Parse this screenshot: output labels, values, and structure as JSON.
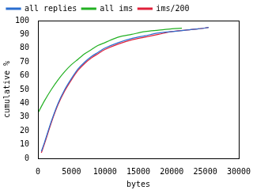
{
  "chart_data": {
    "type": "line",
    "x_label": "bytes",
    "y_label": "cumulative %",
    "xlim": [
      0,
      30000
    ],
    "xticks": [
      0,
      5000,
      10000,
      15000,
      20000,
      25000,
      30000
    ],
    "ylim": [
      0,
      100
    ],
    "yticks": [
      0,
      10,
      20,
      30,
      40,
      50,
      60,
      70,
      80,
      90,
      100
    ],
    "grid": false,
    "legend": "top",
    "series": [
      {
        "name": "all replies",
        "color": "#2a6fd0",
        "x": [
          500,
          1000,
          2000,
          3000,
          4000,
          5000,
          6000,
          7000,
          8000,
          9000,
          10000,
          12000,
          14000,
          16000,
          18000,
          20000,
          22000,
          24000,
          25500
        ],
        "values": [
          5,
          12,
          27,
          40,
          50,
          58,
          65,
          70,
          74,
          77,
          80,
          84,
          87,
          89,
          91,
          92,
          93,
          94,
          95
        ]
      },
      {
        "name": "all ims",
        "color": "#22b022",
        "x": [
          0,
          1000,
          2000,
          3000,
          4000,
          5000,
          6000,
          7000,
          8000,
          9000,
          10000,
          12000,
          14000,
          16000,
          18000,
          20000,
          21500
        ],
        "values": [
          33,
          42,
          50,
          57,
          63,
          68,
          72,
          76,
          79,
          82,
          84,
          88,
          90,
          92,
          93,
          94,
          94.5
        ]
      },
      {
        "name": "ims/200",
        "color": "#e0203a",
        "x": [
          500,
          1000,
          2000,
          3000,
          4000,
          5000,
          6000,
          7000,
          8000,
          9000,
          10000,
          12000,
          14000,
          16000,
          18000,
          20000,
          22000,
          24000,
          25500
        ],
        "values": [
          4,
          11,
          26,
          39,
          49,
          57,
          64,
          69,
          73,
          76,
          79,
          83,
          86,
          88,
          90,
          92,
          93,
          94,
          95
        ]
      }
    ]
  }
}
